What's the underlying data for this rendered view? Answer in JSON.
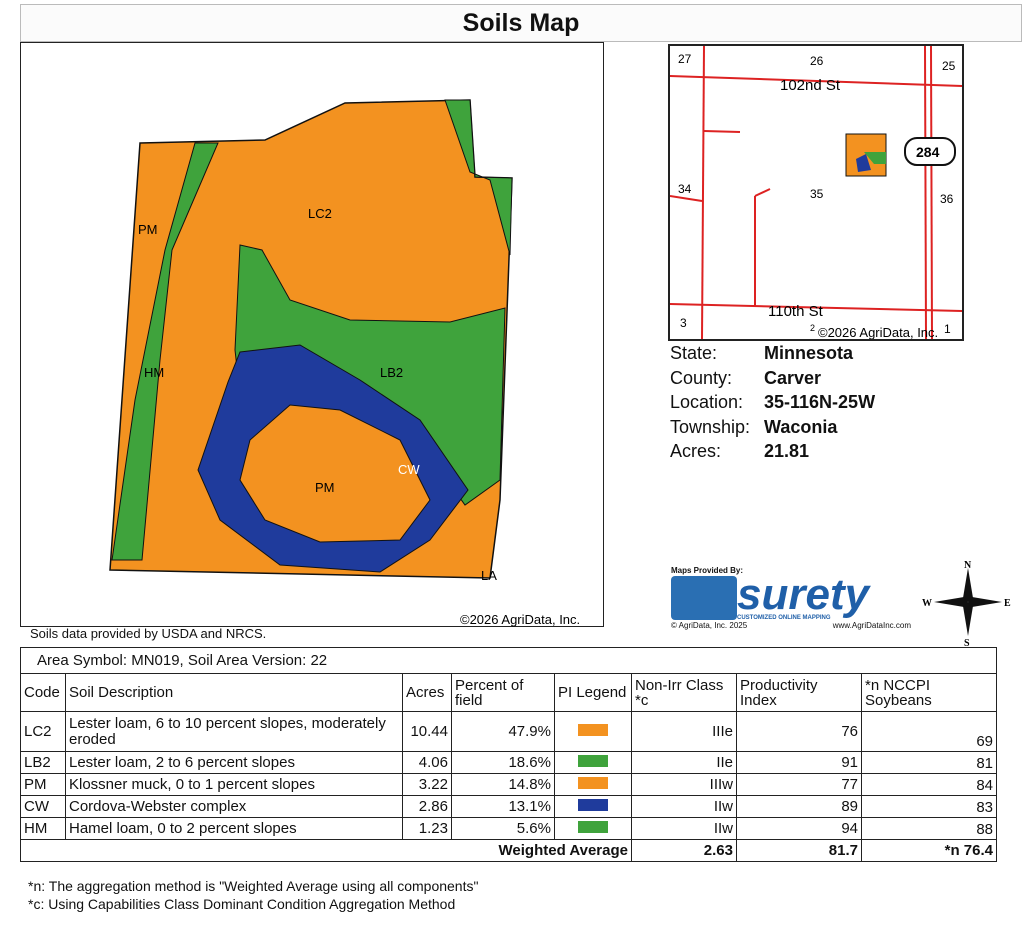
{
  "title": "Soils Map",
  "map": {
    "labels": {
      "lc2": "LC2",
      "pm_left": "PM",
      "hm": "HM",
      "lb2": "LB2",
      "cw": "CW",
      "pm": "PM",
      "la": "LA"
    },
    "copyright": "©2026 AgriData, Inc.",
    "source_note": "Soils data provided by USDA and NRCS."
  },
  "inset": {
    "sections": [
      "27",
      "26",
      "25",
      "34",
      "35",
      "36",
      "3",
      "2",
      "1"
    ],
    "roads": [
      "102nd St",
      "110th St"
    ],
    "highway": "284",
    "copyright": "©2026 AgriData, Inc."
  },
  "info": [
    {
      "k": "State:",
      "v": "Minnesota"
    },
    {
      "k": "County:",
      "v": "Carver"
    },
    {
      "k": "Location:",
      "v": "35-116N-25W"
    },
    {
      "k": "Township:",
      "v": "Waconia"
    },
    {
      "k": "Acres:",
      "v": "21.81"
    }
  ],
  "provider": {
    "maps_provided_by": "Maps Provided By:",
    "logo": "surety",
    "tagline": "CUSTOMIZED ONLINE MAPPING",
    "copyright": "© AgriData, Inc. 2025",
    "url": "www.AgriDataInc.com"
  },
  "compass": {
    "n": "N",
    "s": "S",
    "e": "E",
    "w": "W"
  },
  "colors": {
    "orange": "#f39220",
    "green": "#3fa33c",
    "blue": "#1f3b9c"
  },
  "table": {
    "area": "Area Symbol: MN019, Soil Area Version: 22",
    "headers": [
      "Code",
      "Soil Description",
      "Acres",
      "Percent of field",
      "PI Legend",
      "Non-Irr Class *c",
      "Productivity Index",
      "*n NCCPI Soybeans"
    ],
    "rows": [
      {
        "code": "LC2",
        "desc": "Lester loam, 6 to 10 percent slopes, moderately eroded",
        "acres": "10.44",
        "pct": "47.9%",
        "color": "#f39220",
        "cls": "IIIe",
        "pi": "76",
        "nccpi": "69"
      },
      {
        "code": "LB2",
        "desc": "Lester loam, 2 to 6 percent slopes",
        "acres": "4.06",
        "pct": "18.6%",
        "color": "#3fa33c",
        "cls": "IIe",
        "pi": "91",
        "nccpi": "81"
      },
      {
        "code": "PM",
        "desc": "Klossner muck, 0 to 1 percent slopes",
        "acres": "3.22",
        "pct": "14.8%",
        "color": "#f39220",
        "cls": "IIIw",
        "pi": "77",
        "nccpi": "84"
      },
      {
        "code": "CW",
        "desc": "Cordova-Webster complex",
        "acres": "2.86",
        "pct": "13.1%",
        "color": "#1f3b9c",
        "cls": "IIw",
        "pi": "89",
        "nccpi": "83"
      },
      {
        "code": "HM",
        "desc": "Hamel loam, 0 to 2 percent slopes",
        "acres": "1.23",
        "pct": "5.6%",
        "color": "#3fa33c",
        "cls": "IIw",
        "pi": "94",
        "nccpi": "88"
      }
    ],
    "weighted": {
      "label": "Weighted Average",
      "cls": "2.63",
      "pi": "81.7",
      "nccpi": "*n 76.4"
    }
  },
  "notes": [
    "*n: The aggregation method is \"Weighted Average using all components\"",
    "*c: Using Capabilities Class Dominant Condition Aggregation Method"
  ]
}
